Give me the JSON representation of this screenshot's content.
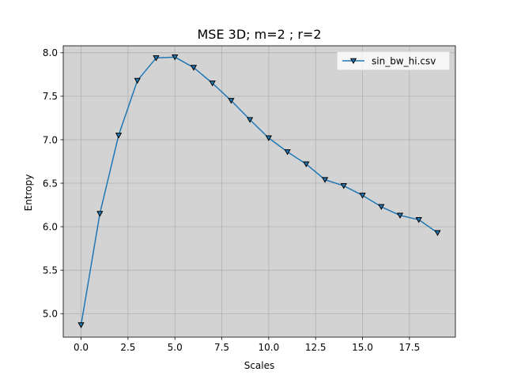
{
  "colors": {
    "figure_bg": "#ffffff",
    "plot_bg": "#d3d3d3",
    "grid": "#b0b0b0",
    "series_line": "#1f77b4",
    "marker_edge": "#000000",
    "axis": "#000000"
  },
  "chart_data": {
    "type": "line",
    "title": "MSE 3D; m=2 ; r=2",
    "xlabel": "Scales",
    "ylabel": "Entropy",
    "xlim": [
      -0.95,
      19.95
    ],
    "ylim": [
      4.73,
      8.08
    ],
    "xticks": [
      0,
      2.5,
      5,
      7.5,
      10,
      12.5,
      15,
      17.5
    ],
    "xtick_labels": [
      "0.0",
      "2.5",
      "5.0",
      "7.5",
      "10.0",
      "12.5",
      "15.0",
      "17.5"
    ],
    "yticks": [
      5.0,
      5.5,
      6.0,
      6.5,
      7.0,
      7.5,
      8.0
    ],
    "ytick_labels": [
      "5.0",
      "5.5",
      "6.0",
      "6.5",
      "7.0",
      "7.5",
      "8.0"
    ],
    "grid": true,
    "legend_position": "top-right",
    "marker": "triangle-down",
    "series": [
      {
        "name": "sin_bw_hi.csv",
        "x": [
          0,
          1,
          2,
          3,
          4,
          5,
          6,
          7,
          8,
          9,
          10,
          11,
          12,
          13,
          14,
          15,
          16,
          17,
          18,
          19
        ],
        "y": [
          4.87,
          6.15,
          7.05,
          7.68,
          7.94,
          7.95,
          7.83,
          7.65,
          7.45,
          7.23,
          7.02,
          6.86,
          6.72,
          6.54,
          6.47,
          6.36,
          6.23,
          6.13,
          6.08,
          5.93
        ]
      }
    ]
  }
}
